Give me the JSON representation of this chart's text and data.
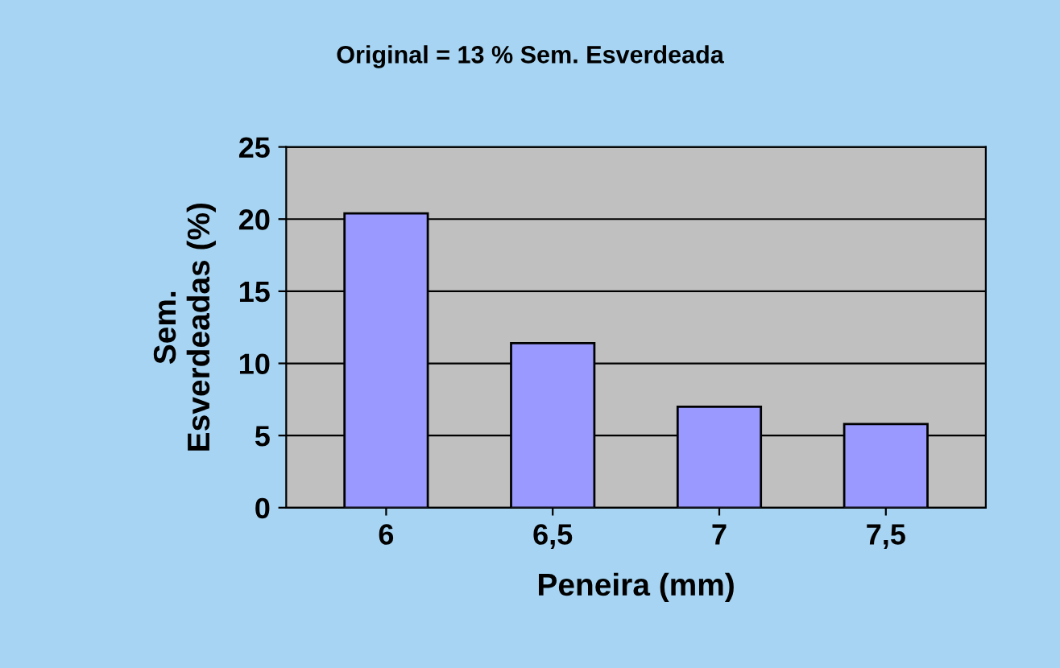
{
  "chart_data": {
    "type": "bar",
    "title": "Original = 13 % Sem. Esverdeada",
    "xlabel": "Peneira (mm)",
    "ylabel": "Sem.\nEsverdeadas (%)",
    "categories": [
      "6",
      "6,5",
      "7",
      "7,5"
    ],
    "values": [
      20.4,
      11.4,
      7.0,
      5.8
    ],
    "color": "#9999ff",
    "ylim": [
      0,
      25
    ],
    "yticks": [
      0,
      5,
      10,
      15,
      20,
      25
    ],
    "grid": "y"
  }
}
